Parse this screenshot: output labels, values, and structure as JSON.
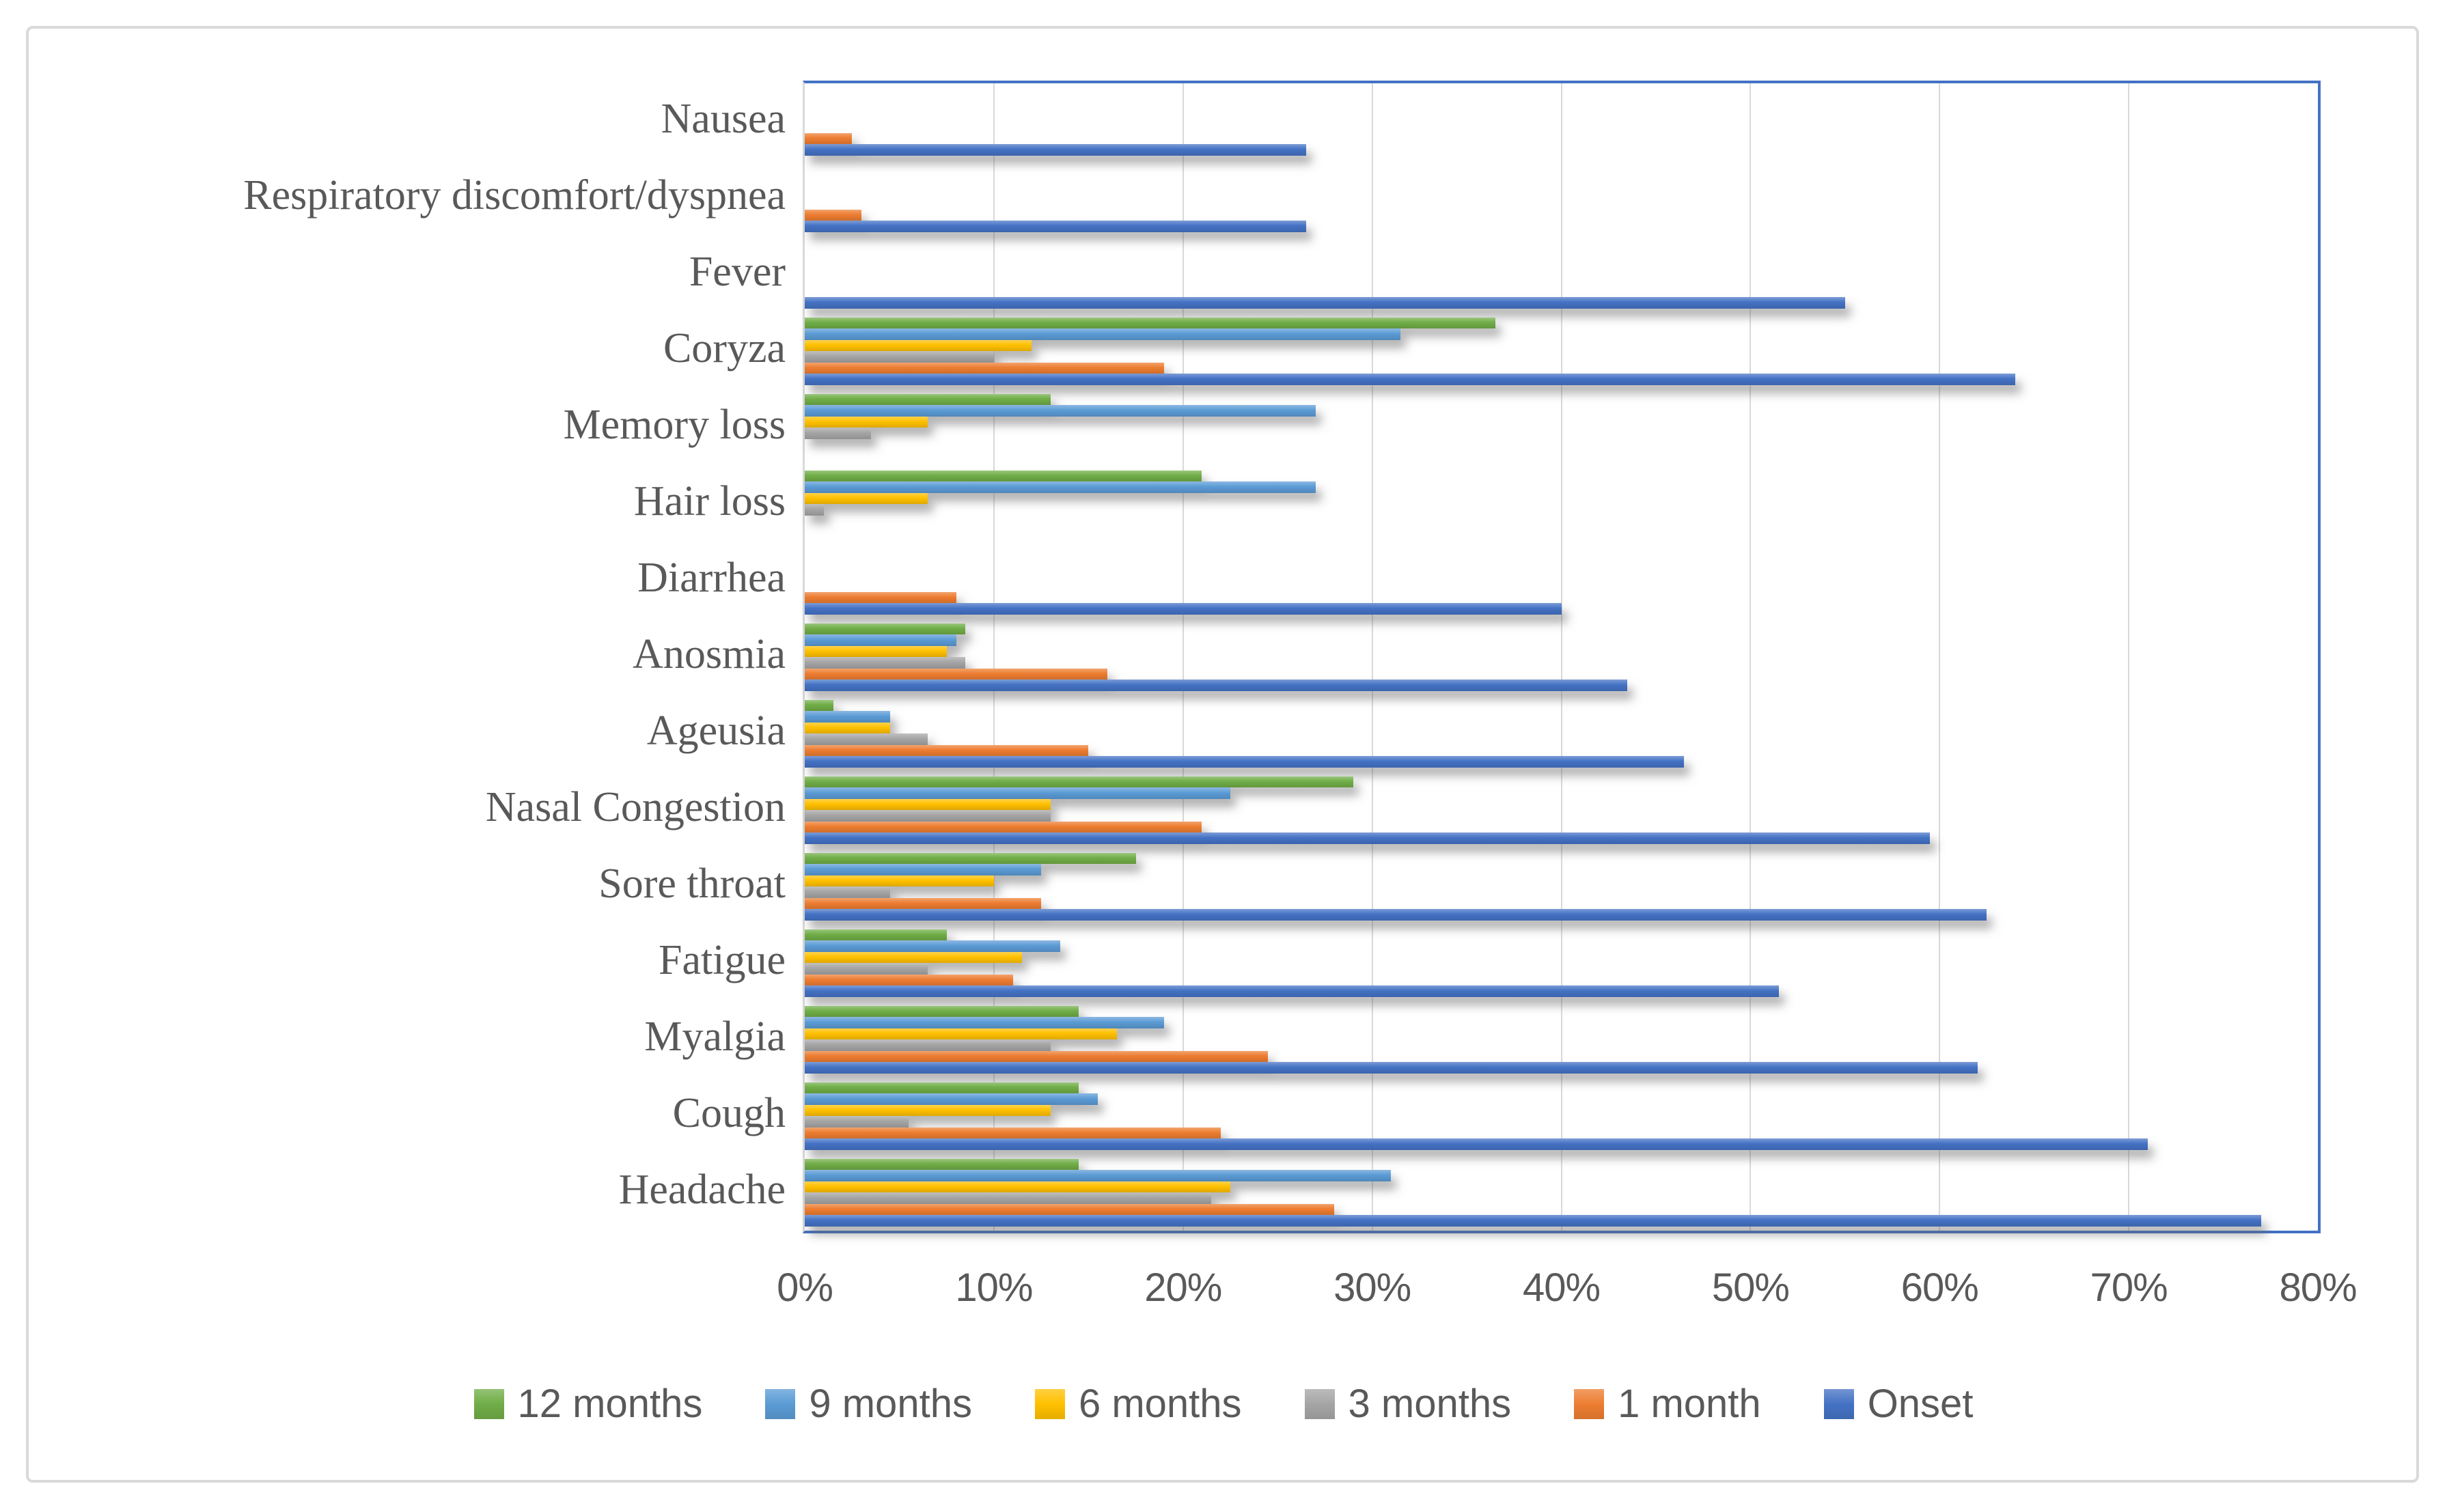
{
  "figure": {
    "background_color": "#FFFFFF",
    "outer_border_color": "#D9D9D9"
  },
  "chart_data": {
    "type": "bar",
    "orientation": "horizontal",
    "title": "",
    "xlabel": "",
    "ylabel": "",
    "xlim": [
      0,
      80
    ],
    "x_ticks": [
      "0%",
      "10%",
      "20%",
      "30%",
      "40%",
      "50%",
      "60%",
      "70%",
      "80%"
    ],
    "grid": true,
    "grid_color": "#D9D9D9",
    "plot_border_color": "#4472C4",
    "axis_line_color": "#D9D9D9",
    "text_color": "#595959",
    "legend_position": "bottom",
    "categories_top_to_bottom": [
      "Nausea",
      "Respiratory discomfort/dyspnea",
      "Fever",
      "Coryza",
      "Memory loss",
      "Hair loss",
      "Diarrhea",
      "Anosmia",
      "Ageusia",
      "Nasal Congestion",
      "Sore throat",
      "Fatigue",
      "Myalgia",
      "Cough",
      "Headache"
    ],
    "series": [
      {
        "name": "12 months",
        "color": "#70AD47",
        "values": [
          0,
          0,
          0,
          36.5,
          13,
          21,
          0,
          8.5,
          1.5,
          29,
          17.5,
          7.5,
          14.5,
          14.5,
          14.5
        ]
      },
      {
        "name": "9 months",
        "color": "#5B9BD5",
        "values": [
          0,
          0,
          0,
          31.5,
          27,
          27,
          0,
          8,
          4.5,
          22.5,
          12.5,
          13.5,
          19,
          15.5,
          31
        ]
      },
      {
        "name": "6 months",
        "color": "#FFC000",
        "values": [
          0,
          0,
          0,
          12,
          6.5,
          6.5,
          0,
          7.5,
          4.5,
          13,
          10,
          11.5,
          16.5,
          13,
          22.5
        ]
      },
      {
        "name": "3 months",
        "color": "#A5A5A5",
        "values": [
          0,
          0,
          0,
          10,
          3.5,
          1,
          0,
          8.5,
          6.5,
          13,
          4.5,
          6.5,
          13,
          5.5,
          21.5
        ]
      },
      {
        "name": "1 month",
        "color": "#ED7D31",
        "values": [
          2.5,
          3,
          0,
          19,
          0,
          0,
          8,
          16,
          15,
          21,
          12.5,
          11,
          24.5,
          22,
          28
        ]
      },
      {
        "name": "Onset",
        "color": "#4472C4",
        "values": [
          26.5,
          26.5,
          55,
          64,
          0,
          0,
          40,
          43.5,
          46.5,
          59.5,
          62.5,
          51.5,
          62,
          71,
          77
        ]
      }
    ]
  }
}
